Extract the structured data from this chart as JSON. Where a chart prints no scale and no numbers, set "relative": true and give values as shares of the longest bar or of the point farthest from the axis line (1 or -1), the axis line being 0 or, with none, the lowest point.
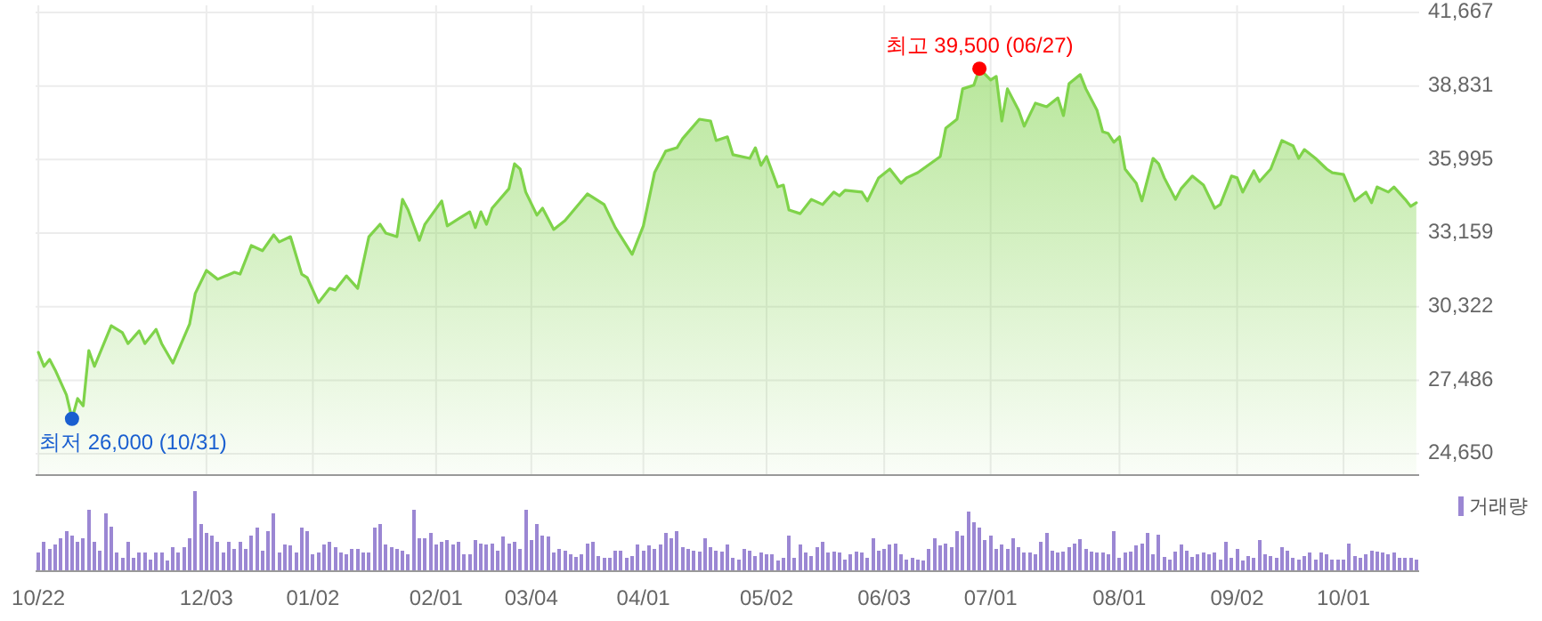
{
  "chart_data": [
    {
      "type": "area",
      "color": "#7fd34a",
      "tick_labels": "y",
      "categories": [
        null,
        null,
        null,
        null,
        null,
        null,
        null,
        null,
        null,
        null,
        null,
        null,
        null,
        null,
        null,
        null,
        null,
        null,
        null,
        null,
        null,
        null,
        null,
        null,
        null,
        null,
        null,
        null,
        null,
        null,
        null,
        null,
        null,
        null,
        null,
        null,
        null,
        null,
        null,
        null,
        null,
        null,
        null,
        null,
        null,
        null,
        null,
        null,
        null,
        null,
        null,
        null,
        null,
        null,
        null,
        null,
        null,
        null,
        null,
        null,
        null,
        null,
        null,
        null,
        null,
        null,
        null,
        null,
        null,
        null,
        null,
        null,
        null,
        null,
        null,
        null,
        null,
        null,
        null,
        null,
        null,
        null,
        null,
        null,
        null,
        null,
        null,
        null,
        null,
        null,
        null,
        null,
        null,
        null,
        null,
        null,
        null,
        null,
        null,
        null,
        null,
        null,
        null,
        null,
        null,
        null,
        null,
        null,
        null,
        null,
        null,
        null,
        null,
        null,
        null,
        null,
        null,
        null,
        null,
        null,
        null,
        null,
        null,
        null,
        null,
        null,
        null,
        null,
        null,
        null,
        null,
        null,
        null,
        null,
        null,
        null,
        null,
        null,
        null,
        null,
        null,
        null,
        null,
        null,
        null,
        null,
        null,
        null,
        null,
        null,
        null,
        null,
        null,
        null,
        null,
        null,
        null,
        null,
        null,
        null,
        null,
        null,
        null,
        null,
        null,
        null,
        null,
        null,
        null,
        null,
        null,
        null,
        null,
        null,
        null,
        null,
        null,
        null,
        null,
        null,
        null,
        null,
        null,
        null,
        null,
        null,
        null,
        null,
        null,
        null,
        null,
        null,
        null,
        null,
        null,
        null,
        null,
        null,
        null,
        null,
        null,
        null,
        null,
        null,
        null,
        null,
        null,
        null,
        null,
        null,
        null,
        null,
        null,
        null,
        null,
        null,
        null,
        null,
        null,
        null,
        null,
        null,
        null,
        null,
        null,
        null,
        null,
        null,
        null,
        null,
        null,
        null,
        null,
        null,
        null,
        null,
        null,
        null,
        null,
        null,
        null,
        null,
        null,
        null,
        null,
        null,
        null
      ],
      "values": [
        28560,
        28020,
        28290,
        27880,
        null,
        26920,
        26000,
        26780,
        26500,
        28630,
        28020,
        null,
        null,
        29590,
        null,
        29320,
        28900,
        null,
        29390,
        28900,
        null,
        29450,
        28900,
        null,
        28150,
        null,
        null,
        29660,
        30830,
        null,
        31720,
        null,
        31380,
        null,
        null,
        31650,
        31580,
        null,
        32680,
        null,
        32480,
        null,
        33090,
        32820,
        null,
        33020,
        null,
        31580,
        31440,
        null,
        30480,
        null,
        31030,
        30960,
        null,
        31510,
        null,
        31030,
        null,
        33020,
        null,
        33500,
        33160,
        null,
        33020,
        34460,
        34050,
        null,
        32880,
        33500,
        null,
        null,
        34400,
        33440,
        null,
        33710,
        null,
        33980,
        33370,
        33980,
        33500,
        34120,
        null,
        null,
        34870,
        35830,
        35630,
        34740,
        null,
        33850,
        34120,
        null,
        33300,
        null,
        33640,
        null,
        null,
        null,
        34670,
        null,
        null,
        34260,
        null,
        33370,
        null,
        null,
        32340,
        null,
        33440,
        null,
        35490,
        null,
        36320,
        null,
        36450,
        36800,
        null,
        null,
        37550,
        null,
        37480,
        36730,
        null,
        36870,
        36180,
        null,
        null,
        36040,
        36450,
        35770,
        36110,
        null,
        34940,
        35010,
        34050,
        null,
        33910,
        null,
        34460,
        null,
        34260,
        null,
        34740,
        34600,
        34810,
        null,
        null,
        34740,
        34400,
        null,
        35290,
        null,
        35630,
        null,
        35080,
        35290,
        null,
        35490,
        null,
        null,
        null,
        36110,
        37210,
        null,
        37550,
        38720,
        null,
        38860,
        39500,
        null,
        39060,
        39200,
        37480,
        38720,
        null,
        37890,
        37280,
        null,
        38170,
        null,
        38030,
        null,
        38370,
        37690,
        38920,
        null,
        39270,
        38720,
        null,
        37890,
        37070,
        37000,
        36660,
        36870,
        35630,
        null,
        35080,
        34400,
        null,
        36040,
        35830,
        35290,
        null,
        34460,
        34870,
        null,
        35360,
        null,
        35010,
        null,
        34120,
        34260,
        null,
        35360,
        35290,
        34740,
        null,
        35560,
        35150,
        null,
        35630,
        null,
        36730,
        null,
        36520,
        36040,
        36380,
        null,
        36040,
        null,
        35630,
        35490,
        null,
        35420,
        null,
        34400,
        null,
        34740,
        34330,
        34940,
        null,
        34740,
        34940,
        null,
        34460,
        34190,
        34330
      ],
      "ylim": [
        23830,
        41940
      ],
      "yticks": [
        {
          "value": 24650,
          "label": "24,650"
        },
        {
          "value": 27486,
          "label": "27,486"
        },
        {
          "value": 30322,
          "label": "30,322"
        },
        {
          "value": 33159,
          "label": "33,159"
        },
        {
          "value": 35995,
          "label": "35,995"
        },
        {
          "value": 38831,
          "label": "38,831"
        },
        {
          "value": 41667,
          "label": "41,667"
        }
      ],
      "grid": true,
      "annotations": [
        {
          "text": "최고 39,500 (06/27)",
          "y": 39500
        },
        "최저 26,000 (10/31)"
      ]
    },
    {
      "type": "bar",
      "relative": true,
      "legend": "top right",
      "categories": [
        "10/22",
        null,
        null,
        null,
        null,
        null,
        null,
        null,
        null,
        null,
        null,
        null,
        null,
        null,
        null,
        null,
        null,
        null,
        null,
        null,
        null,
        null,
        null,
        null,
        null,
        null,
        null,
        null,
        null,
        null,
        "12/03",
        null,
        null,
        null,
        null,
        null,
        null,
        null,
        null,
        null,
        null,
        null,
        null,
        null,
        null,
        null,
        null,
        null,
        null,
        "01/02",
        null,
        null,
        null,
        null,
        null,
        null,
        null,
        null,
        null,
        null,
        null,
        null,
        null,
        null,
        null,
        null,
        null,
        null,
        null,
        null,
        null,
        "02/01",
        null,
        null,
        null,
        null,
        null,
        null,
        null,
        null,
        null,
        null,
        null,
        null,
        null,
        null,
        null,
        null,
        "03/04",
        null,
        null,
        null,
        null,
        null,
        null,
        null,
        null,
        null,
        null,
        null,
        null,
        null,
        null,
        null,
        null,
        null,
        null,
        null,
        "04/01",
        null,
        null,
        null,
        null,
        null,
        null,
        null,
        null,
        null,
        null,
        null,
        null,
        null,
        null,
        null,
        null,
        null,
        null,
        null,
        null,
        null,
        "05/02",
        null,
        null,
        null,
        null,
        null,
        null,
        null,
        null,
        null,
        null,
        null,
        null,
        null,
        null,
        null,
        null,
        null,
        null,
        null,
        null,
        "06/03",
        null,
        null,
        null,
        null,
        null,
        null,
        null,
        null,
        null,
        null,
        null,
        null,
        null,
        null,
        null,
        null,
        null,
        null,
        "07/01",
        null,
        null,
        null,
        null,
        null,
        null,
        null,
        null,
        null,
        null,
        null,
        null,
        null,
        null,
        null,
        null,
        null,
        null,
        null,
        null,
        null,
        null,
        "08/01",
        null,
        null,
        null,
        null,
        null,
        null,
        null,
        null,
        null,
        null,
        null,
        null,
        null,
        null,
        null,
        null,
        null,
        null,
        null,
        null,
        "09/02",
        null,
        null,
        null,
        null,
        null,
        null,
        null,
        null,
        null,
        null,
        null,
        null,
        null,
        null,
        null,
        null,
        null,
        null,
        "10/01",
        null,
        null,
        null,
        null,
        null,
        null,
        null,
        null,
        null,
        null,
        null,
        null,
        null
      ],
      "series": [
        {
          "name": "거래량",
          "color": "#9b87d3",
          "values": [
            0.23,
            0.37,
            0.28,
            0.33,
            0.41,
            0.5,
            0.45,
            0.37,
            0.41,
            0.77,
            0.37,
            0.26,
            0.72,
            0.56,
            0.23,
            0.17,
            0.37,
            0.17,
            0.23,
            0.23,
            0.15,
            0.23,
            0.23,
            0.13,
            0.3,
            0.23,
            0.3,
            0.41,
            1,
            0.59,
            0.48,
            0.45,
            0.37,
            0.23,
            0.37,
            0.28,
            0.37,
            0.28,
            0.45,
            0.54,
            0.26,
            0.5,
            0.72,
            0.23,
            0.33,
            0.32,
            0.23,
            0.54,
            0.5,
            0.21,
            0.23,
            0.33,
            0.37,
            0.3,
            0.23,
            0.21,
            0.28,
            0.28,
            0.23,
            0.23,
            0.54,
            0.59,
            0.33,
            0.3,
            0.28,
            0.26,
            0.21,
            0.77,
            0.41,
            0.41,
            0.48,
            0.33,
            0.37,
            0.39,
            0.33,
            0.37,
            0.21,
            0.21,
            0.39,
            0.34,
            0.33,
            0.35,
            0.26,
            0.43,
            0.34,
            0.37,
            0.28,
            0.77,
            0.39,
            0.59,
            0.45,
            0.43,
            0.23,
            0.28,
            0.26,
            0.21,
            0.18,
            0.21,
            0.34,
            0.37,
            0.19,
            0.17,
            0.17,
            0.26,
            0.26,
            0.17,
            0.19,
            0.33,
            0.26,
            0.32,
            0.28,
            0.33,
            0.48,
            0.41,
            0.5,
            0.3,
            0.28,
            0.26,
            0.24,
            0.41,
            0.3,
            0.26,
            0.24,
            0.33,
            0.17,
            0.15,
            0.28,
            0.26,
            0.19,
            0.23,
            0.21,
            0.21,
            0.13,
            0.17,
            0.45,
            0.17,
            0.33,
            0.23,
            0.19,
            0.3,
            0.37,
            0.23,
            0.24,
            0.23,
            0.15,
            0.21,
            0.24,
            0.23,
            0.17,
            0.41,
            0.26,
            0.28,
            0.33,
            0.35,
            0.21,
            0.15,
            0.17,
            0.15,
            0.13,
            0.28,
            0.41,
            0.32,
            0.34,
            0.3,
            0.5,
            0.45,
            0.74,
            0.61,
            0.54,
            0.39,
            0.44,
            0.28,
            0.33,
            0.28,
            0.41,
            0.3,
            0.23,
            0.23,
            0.21,
            0.37,
            0.48,
            0.26,
            0.23,
            0.24,
            0.3,
            0.34,
            0.4,
            0.28,
            0.24,
            0.23,
            0.23,
            0.21,
            0.5,
            0.17,
            0.23,
            0.24,
            0.32,
            0.35,
            0.48,
            0.21,
            0.46,
            0.18,
            0.15,
            0.24,
            0.33,
            0.26,
            0.18,
            0.21,
            0.23,
            0.21,
            0.23,
            0.15,
            0.37,
            0.17,
            0.28,
            0.13,
            0.19,
            0.17,
            0.39,
            0.21,
            0.19,
            0.17,
            0.3,
            0.26,
            0.17,
            0.15,
            0.19,
            0.23,
            0.15,
            0.23,
            0.21,
            0.15,
            0.15,
            0.15,
            0.35,
            0.19,
            0.17,
            0.21,
            0.26,
            0.24,
            0.23,
            0.21,
            0.23,
            0.17,
            0.17,
            0.17,
            0.15
          ]
        }
      ]
    }
  ]
}
